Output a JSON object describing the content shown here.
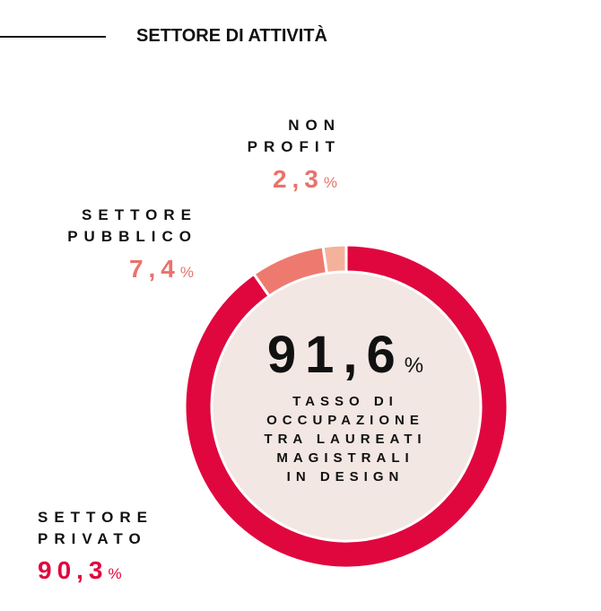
{
  "header": {
    "title": "SETTORE DI ATTIVITÀ"
  },
  "center": {
    "value": "91,6",
    "unit": "%",
    "caption_lines": [
      "TASSO DI",
      "OCCUPAZIONE",
      "TRA LAUREATI",
      "MAGISTRALI",
      "IN DESIGN"
    ]
  },
  "labels": {
    "nonprofit": {
      "lines": [
        "NON",
        "PROFIT"
      ],
      "value": "2,3",
      "unit": "%"
    },
    "pubblico": {
      "lines": [
        "SETTORE",
        "PUBBLICO"
      ],
      "value": "7,4",
      "unit": "%"
    },
    "privato": {
      "lines": [
        "SETTORE",
        "PRIVATO"
      ],
      "value": "90,3",
      "unit": "%"
    }
  },
  "chart_data": {
    "type": "pie",
    "categories": [
      "Settore privato",
      "Settore pubblico",
      "Non profit"
    ],
    "values": [
      90.3,
      7.4,
      2.3
    ],
    "colors": [
      "#e0073e",
      "#ee7a6f",
      "#f4b29c"
    ],
    "center_fill": "#f2e7e3",
    "title": "SETTORE DI ATTIVITÀ"
  }
}
